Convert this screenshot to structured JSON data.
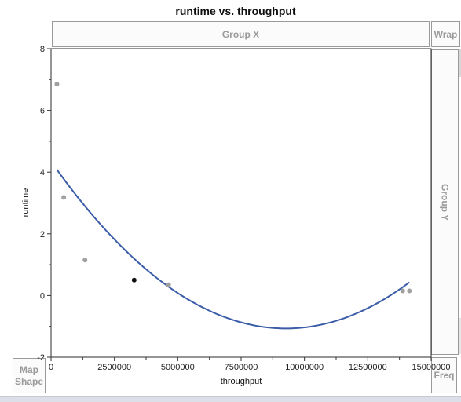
{
  "title": "runtime vs. throughput",
  "drop_zones": {
    "group_x": "Group X",
    "wrap": "Wrap",
    "group_y": "Group Y",
    "map_shape_line1": "Map",
    "map_shape_line2": "Shape",
    "freq": "Freq"
  },
  "chart_data": {
    "type": "scatter",
    "title": "runtime vs. throughput",
    "xlabel": "throughput",
    "ylabel": "runtime",
    "xlim": [
      0,
      15000000
    ],
    "ylim": [
      -2,
      8
    ],
    "x_ticks": [
      0,
      2500000,
      5000000,
      7500000,
      10000000,
      12500000,
      15000000
    ],
    "x_tick_labels": [
      "0",
      "2500000",
      "5000000",
      "7500000",
      "10000000",
      "12500000",
      "15000000"
    ],
    "y_ticks": [
      -2,
      0,
      2,
      4,
      6,
      8
    ],
    "y_tick_labels": [
      "-2",
      "0",
      "2",
      "4",
      "6",
      "8"
    ],
    "y_minor_ticks": [
      -1,
      1,
      3,
      5,
      7
    ],
    "points": [
      {
        "x": 230000,
        "y": 6.85,
        "color": "#a0a0a0"
      },
      {
        "x": 500000,
        "y": 3.18,
        "color": "#a0a0a0"
      },
      {
        "x": 1340000,
        "y": 1.15,
        "color": "#a0a0a0"
      },
      {
        "x": 3280000,
        "y": 0.5,
        "color": "#111111"
      },
      {
        "x": 4640000,
        "y": 0.35,
        "color": "#a0a0a0"
      },
      {
        "x": 13880000,
        "y": 0.15,
        "color": "#a0a0a0"
      },
      {
        "x": 14140000,
        "y": 0.15,
        "color": "#a0a0a0"
      }
    ],
    "fit_curve": {
      "type": "quadratic",
      "color": "#3b5da8",
      "x_range": [
        230000,
        14140000
      ],
      "points": [
        {
          "x": 230000,
          "y": 4.45
        },
        {
          "x": 2000000,
          "y": 2.0
        },
        {
          "x": 4000000,
          "y": 0.35
        },
        {
          "x": 6000000,
          "y": -0.55
        },
        {
          "x": 8300000,
          "y": -0.85
        },
        {
          "x": 10000000,
          "y": -0.72
        },
        {
          "x": 12000000,
          "y": -0.38
        },
        {
          "x": 14140000,
          "y": 0.12
        }
      ]
    },
    "grid": false,
    "legend": "none"
  }
}
